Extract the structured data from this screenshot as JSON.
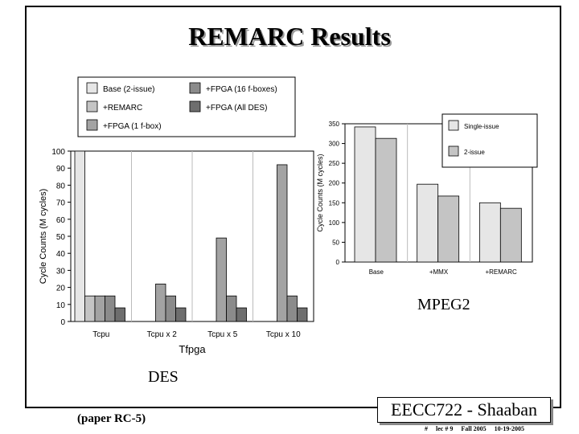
{
  "slide": {
    "title": "REMARC Results",
    "paper_ref": "(paper RC-5)",
    "course": "EECC722 - Shaaban",
    "footer": [
      "#",
      "lec # 9",
      "Fall 2005",
      "10-19-2005"
    ]
  },
  "chart_data": [
    {
      "type": "bar",
      "caption": "DES",
      "xlabel": "Tfpga",
      "ylabel": "Cycle Counts (M cycles)",
      "ylim": [
        0,
        100
      ],
      "yticks": [
        0,
        10,
        20,
        30,
        40,
        50,
        60,
        70,
        80,
        90,
        100
      ],
      "grid": "vertical",
      "legend_position": "top",
      "categories": [
        "Tcpu",
        "Tcpu x 2",
        "Tcpu x 5",
        "Tcpu x 10"
      ],
      "series": [
        {
          "name": "Base (2-issue)",
          "color": "#e6e6e6",
          "values": [
            100,
            null,
            null,
            null
          ]
        },
        {
          "name": "+REMARC",
          "color": "#c4c4c4",
          "values": [
            15,
            null,
            null,
            null
          ]
        },
        {
          "name": "+FPGA (1 f-box)",
          "color": "#a3a3a3",
          "values": [
            15,
            22,
            49,
            92
          ]
        },
        {
          "name": "+FPGA (16 f-boxes)",
          "color": "#8b8b8b",
          "values": [
            15,
            15,
            15,
            15
          ]
        },
        {
          "name": "+FPGA (All DES)",
          "color": "#6e6e6e",
          "values": [
            8,
            8,
            8,
            8
          ]
        }
      ]
    },
    {
      "type": "bar",
      "caption": "MPEG2",
      "ylabel": "Cycle Counts (M cycles)",
      "ylim": [
        0,
        350
      ],
      "yticks": [
        0,
        50,
        100,
        150,
        200,
        250,
        300,
        350
      ],
      "grid": "vertical",
      "legend_position": "top-right",
      "categories": [
        "Base",
        "+MMX",
        "+REMARC"
      ],
      "series": [
        {
          "name": "Single-issue",
          "color": "#e6e6e6",
          "values": [
            342,
            197,
            150
          ]
        },
        {
          "name": "2-issue",
          "color": "#c4c4c4",
          "values": [
            313,
            167,
            136
          ]
        }
      ]
    }
  ]
}
